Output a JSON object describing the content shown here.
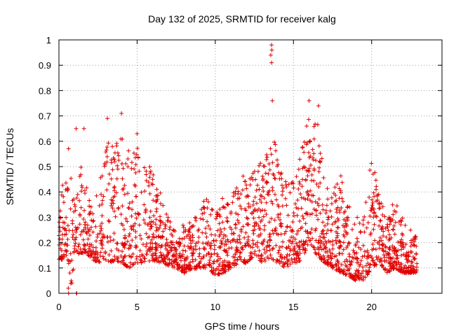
{
  "chart_data": {
    "type": "scatter",
    "title": "Day 132 of 2025, SRMTID for receiver kalg",
    "xlabel": "GPS time / hours",
    "ylabel": "SRMTID / TECUs",
    "xlim": [
      0,
      24.5
    ],
    "ylim": [
      0,
      1
    ],
    "x_ticks": [
      "0",
      "5",
      "10",
      "15",
      "20"
    ],
    "x_tick_values": [
      0,
      5,
      10,
      15,
      20
    ],
    "y_ticks": [
      "0",
      "0.1",
      "0.2",
      "0.3",
      "0.4",
      "0.5",
      "0.6",
      "0.7",
      "0.8",
      "0.9",
      "1"
    ],
    "y_tick_values": [
      0,
      0.1,
      0.2,
      0.3,
      0.4,
      0.5,
      0.6,
      0.7,
      0.8,
      0.9,
      1
    ],
    "grid": true,
    "marker": "plus",
    "color": "#e00000",
    "envelope": {
      "x": [
        0.0,
        0.5,
        0.8,
        1.0,
        1.5,
        2.0,
        2.5,
        3.0,
        3.5,
        4.0,
        4.5,
        5.0,
        5.5,
        6.0,
        6.5,
        7.0,
        7.5,
        8.0,
        8.5,
        9.0,
        9.5,
        10.0,
        10.5,
        11.0,
        11.5,
        12.0,
        12.5,
        13.0,
        13.5,
        14.0,
        14.5,
        15.0,
        15.5,
        16.0,
        16.5,
        17.0,
        17.5,
        18.0,
        18.5,
        19.0,
        19.5,
        20.0,
        20.5,
        21.0,
        21.5,
        22.0,
        22.5,
        22.9
      ],
      "low": [
        0.12,
        0.15,
        0.0,
        0.15,
        0.16,
        0.14,
        0.12,
        0.13,
        0.12,
        0.12,
        0.1,
        0.12,
        0.12,
        0.13,
        0.12,
        0.11,
        0.1,
        0.08,
        0.09,
        0.1,
        0.1,
        0.07,
        0.08,
        0.1,
        0.12,
        0.12,
        0.15,
        0.12,
        0.14,
        0.12,
        0.1,
        0.12,
        0.12,
        0.2,
        0.15,
        0.12,
        0.1,
        0.08,
        0.07,
        0.05,
        0.05,
        0.1,
        0.12,
        0.08,
        0.1,
        0.08,
        0.08,
        0.08
      ],
      "high": [
        0.3,
        0.6,
        0.65,
        0.52,
        0.5,
        0.35,
        0.4,
        0.65,
        0.6,
        0.7,
        0.55,
        0.62,
        0.55,
        0.48,
        0.4,
        0.3,
        0.25,
        0.28,
        0.3,
        0.35,
        0.38,
        0.3,
        0.4,
        0.38,
        0.45,
        0.5,
        0.48,
        0.55,
        0.7,
        0.6,
        0.45,
        0.45,
        0.55,
        0.72,
        0.7,
        0.45,
        0.4,
        0.48,
        0.38,
        0.3,
        0.3,
        0.55,
        0.38,
        0.3,
        0.4,
        0.3,
        0.25,
        0.22
      ]
    },
    "notable_points": [
      {
        "x": 13.6,
        "y": 0.98
      },
      {
        "x": 13.62,
        "y": 0.96
      },
      {
        "x": 13.55,
        "y": 0.94
      },
      {
        "x": 13.6,
        "y": 0.91
      },
      {
        "x": 13.65,
        "y": 0.76
      },
      {
        "x": 16.0,
        "y": 0.76
      },
      {
        "x": 16.6,
        "y": 0.74
      },
      {
        "x": 4.0,
        "y": 0.71
      },
      {
        "x": 3.1,
        "y": 0.69
      },
      {
        "x": 5.0,
        "y": 0.63
      },
      {
        "x": 1.1,
        "y": 0.65
      },
      {
        "x": 1.6,
        "y": 0.65
      },
      {
        "x": 0.7,
        "y": 0.08
      },
      {
        "x": 0.6,
        "y": 0.02
      },
      {
        "x": 0.62,
        "y": 0.0
      },
      {
        "x": 1.12,
        "y": 0.0
      },
      {
        "x": 1.14,
        "y": 0.0
      }
    ],
    "sample_count": 2100,
    "seed": 132
  }
}
